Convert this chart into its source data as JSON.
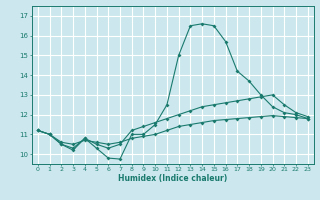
{
  "xlabel": "Humidex (Indice chaleur)",
  "bg_color": "#cce8ee",
  "grid_color": "#ffffff",
  "line_color": "#1a7a6e",
  "xlim": [
    -0.5,
    23.5
  ],
  "ylim": [
    9.5,
    17.5
  ],
  "xticks": [
    0,
    1,
    2,
    3,
    4,
    5,
    6,
    7,
    8,
    9,
    10,
    11,
    12,
    13,
    14,
    15,
    16,
    17,
    18,
    19,
    20,
    21,
    22,
    23
  ],
  "yticks": [
    10,
    11,
    12,
    13,
    14,
    15,
    16,
    17
  ],
  "series1_x": [
    0,
    1,
    2,
    3,
    4,
    5,
    6,
    7,
    8,
    9,
    10,
    11,
    12,
    13,
    14,
    15,
    16,
    17,
    18,
    19,
    20,
    21,
    22,
    23
  ],
  "series1_y": [
    11.2,
    11.0,
    10.5,
    10.2,
    10.8,
    10.3,
    9.8,
    9.75,
    11.0,
    11.0,
    11.5,
    12.5,
    15.0,
    16.5,
    16.6,
    16.5,
    15.7,
    14.2,
    13.7,
    13.0,
    12.4,
    12.1,
    12.0,
    11.8
  ],
  "series2_x": [
    0,
    1,
    2,
    3,
    4,
    5,
    6,
    7,
    8,
    9,
    10,
    11,
    12,
    13,
    14,
    15,
    16,
    17,
    18,
    19,
    20,
    21,
    22,
    23
  ],
  "series2_y": [
    11.2,
    11.0,
    10.5,
    10.3,
    10.8,
    10.5,
    10.3,
    10.5,
    11.2,
    11.4,
    11.6,
    11.8,
    12.0,
    12.2,
    12.4,
    12.5,
    12.6,
    12.7,
    12.8,
    12.9,
    13.0,
    12.5,
    12.1,
    11.9
  ],
  "series3_x": [
    0,
    1,
    2,
    3,
    4,
    5,
    6,
    7,
    8,
    9,
    10,
    11,
    12,
    13,
    14,
    15,
    16,
    17,
    18,
    19,
    20,
    21,
    22,
    23
  ],
  "series3_y": [
    11.2,
    11.0,
    10.6,
    10.5,
    10.7,
    10.6,
    10.5,
    10.6,
    10.8,
    10.9,
    11.0,
    11.2,
    11.4,
    11.5,
    11.6,
    11.7,
    11.75,
    11.8,
    11.85,
    11.9,
    11.95,
    11.9,
    11.85,
    11.8
  ]
}
